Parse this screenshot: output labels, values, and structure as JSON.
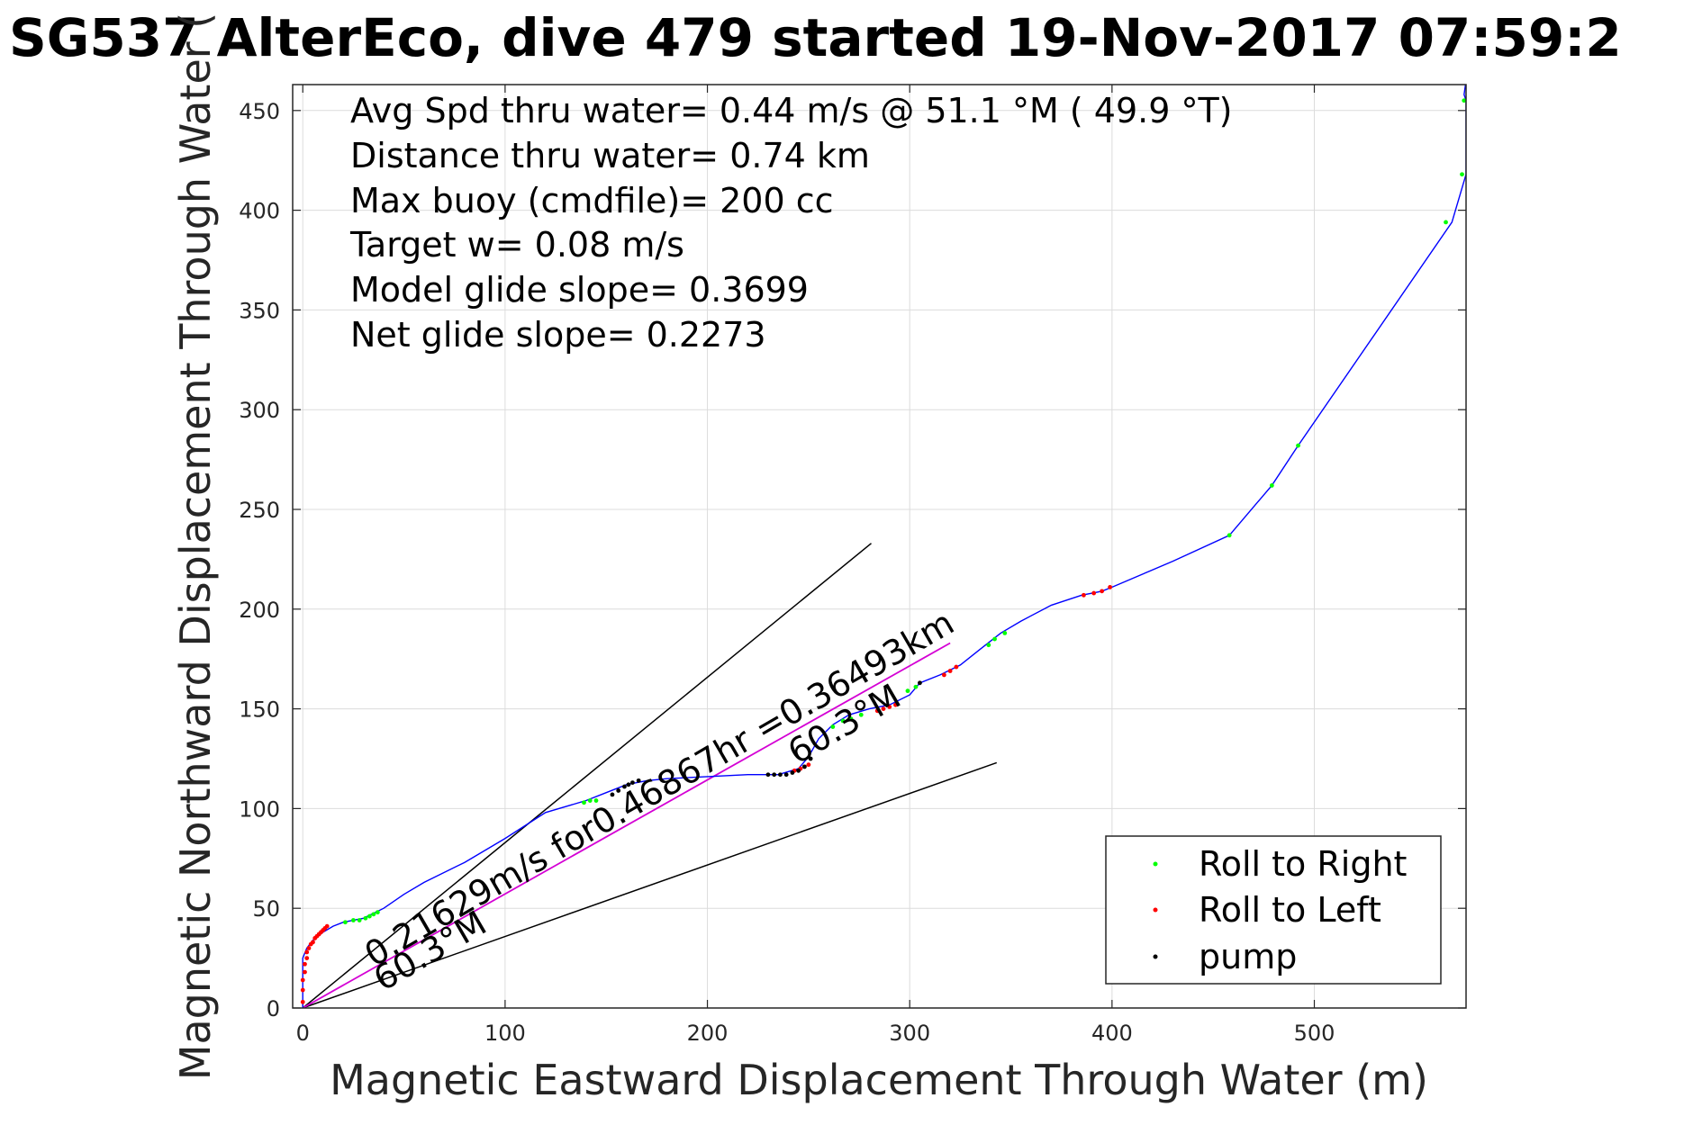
{
  "chart_data": {
    "type": "line",
    "title": "SG537 AlterEco, dive 479 started 19-Nov-2017 07:59:2",
    "xlabel": "Magnetic Eastward Displacement Through Water (m)",
    "ylabel": "Magnetic Northward Displacement Through Water (",
    "xlim": [
      -5,
      575
    ],
    "ylim": [
      0,
      463
    ],
    "x_ticks": [
      "0",
      "100",
      "200",
      "300",
      "400",
      "500"
    ],
    "y_ticks": [
      "0",
      "50",
      "100",
      "150",
      "200",
      "250",
      "300",
      "350",
      "400",
      "450"
    ],
    "grid": true,
    "info_lines": [
      "Avg Spd thru water=  0.44 m/s @  51.1 °M ( 49.9 °T)",
      "Distance thru water=  0.74 km",
      "Max buoy (cmdfile)= 200 cc",
      "Target w= 0.08 m/s",
      "Model glide slope= 0.3699",
      "Net glide slope= 0.2273"
    ],
    "annotations": [
      "0.21629m/s for0.46867hr =0.36493km",
      "60.3°M",
      "60.3°M"
    ],
    "legend": {
      "position": "bottom-right",
      "entries": [
        {
          "label": "Roll to Right",
          "color": "#00ff00"
        },
        {
          "label": "Roll to Left",
          "color": "#ff0000"
        },
        {
          "label": "pump",
          "color": "#000000"
        }
      ]
    },
    "track": {
      "color": "#0000ff",
      "x": [
        0,
        0,
        2,
        5,
        10,
        15,
        20,
        30,
        40,
        50,
        60,
        80,
        100,
        120,
        140,
        150,
        160,
        170,
        180,
        200,
        220,
        235,
        245,
        250,
        255,
        262,
        270,
        280,
        290,
        300,
        305,
        315,
        325,
        335,
        345,
        355,
        370,
        385,
        395,
        400,
        430,
        458,
        479,
        492,
        568,
        575,
        575,
        574,
        575
      ],
      "y": [
        0,
        25,
        30,
        34,
        38,
        41,
        43,
        45,
        50,
        57,
        63,
        73,
        85,
        98,
        104,
        108,
        112,
        114,
        115,
        116,
        117,
        117,
        120,
        126,
        135,
        142,
        147,
        150,
        152,
        157,
        163,
        167,
        172,
        180,
        188,
        194,
        202,
        207,
        209,
        211,
        224,
        237,
        262,
        282,
        394,
        418,
        455,
        458,
        465
      ]
    },
    "fit_line": {
      "color": "#d400d4",
      "x": [
        0,
        320
      ],
      "y": [
        0,
        183
      ]
    },
    "bracket_lines": [
      {
        "x": [
          0,
          281
        ],
        "y": [
          0,
          233
        ]
      },
      {
        "x": [
          0,
          343
        ],
        "y": [
          0,
          123
        ]
      }
    ],
    "series": [
      {
        "name": "Roll to Right",
        "color": "#00ff00",
        "x": [
          21,
          25,
          28,
          31,
          33,
          35,
          37,
          139,
          142,
          145,
          262,
          267,
          271,
          276,
          299,
          303,
          339,
          342,
          347,
          458,
          479,
          492,
          565,
          573,
          574,
          574
        ],
        "y": [
          43,
          44,
          44,
          45,
          46,
          47,
          48,
          103,
          104,
          104,
          141,
          144,
          145,
          147,
          159,
          161,
          182,
          185,
          188,
          237,
          262,
          282,
          394,
          418,
          455,
          465
        ]
      },
      {
        "name": "Roll to Left",
        "color": "#ff0000",
        "x": [
          0,
          0,
          0,
          1,
          1,
          2,
          2,
          3,
          4,
          5,
          6,
          7,
          8,
          9,
          10,
          11,
          12,
          243,
          246,
          248,
          250,
          284,
          287,
          290,
          293,
          317,
          320,
          323,
          386,
          391,
          395,
          399
        ],
        "y": [
          3,
          9,
          14,
          18,
          22,
          25,
          28,
          30,
          32,
          33,
          35,
          36,
          37,
          38,
          39,
          40,
          41,
          119,
          120,
          121,
          122,
          149,
          150,
          151,
          152,
          167,
          169,
          171,
          207,
          208,
          209,
          211
        ]
      },
      {
        "name": "pump",
        "color": "#000000",
        "x": [
          153,
          156,
          159,
          161,
          163,
          166,
          230,
          233,
          236,
          239,
          242,
          245,
          248,
          251,
          305
        ],
        "y": [
          107,
          109,
          111,
          112,
          113,
          114,
          117,
          117,
          117,
          117,
          118,
          119,
          121,
          125,
          163
        ]
      }
    ]
  }
}
